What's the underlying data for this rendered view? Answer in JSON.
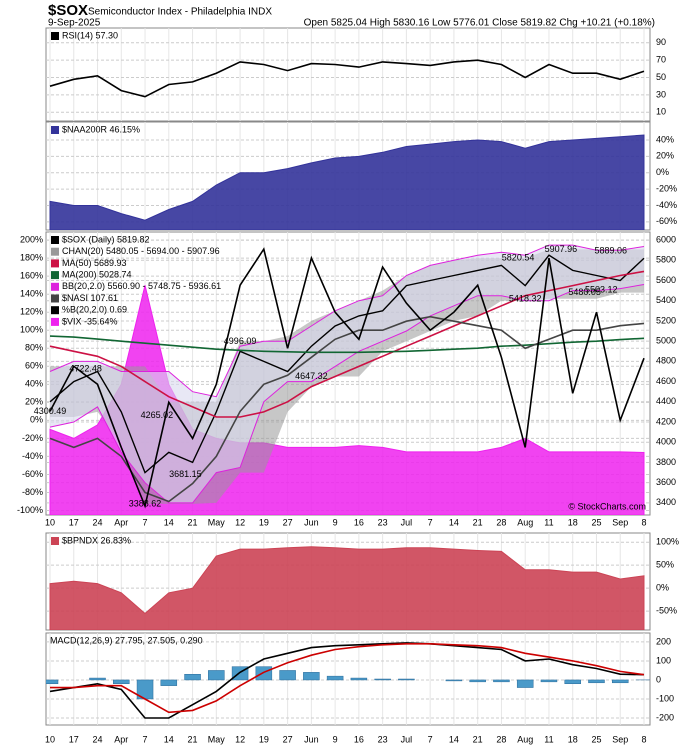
{
  "header": {
    "symbol": "$SOX",
    "name": "Semiconductor Index - Philadelphia INDX",
    "date": "9-Sep-2025",
    "quote": "Open 5825.04 High 5830.16 Low 5776.01 Close 5819.82 Chg +10.21 (+0.18%)",
    "credit": "© StockCharts.com"
  },
  "chart_data": [
    {
      "type": "line",
      "ylim": [
        0,
        107
      ],
      "yticks": [
        90,
        70,
        50,
        30,
        10
      ],
      "grid": true,
      "series": [
        {
          "name": "RSI(14) 57.30",
          "color": "#000000",
          "style": "line",
          "values": [
            40,
            48,
            52,
            35,
            28,
            42,
            45,
            55,
            68,
            65,
            58,
            66,
            65,
            62,
            68,
            66,
            64,
            68,
            70,
            65,
            50,
            65,
            55,
            55,
            48,
            57.3
          ]
        }
      ]
    },
    {
      "type": "area",
      "ylim": [
        -70,
        62
      ],
      "grid": true,
      "yticks": [
        {
          "value": 40,
          "label": "40%"
        },
        {
          "value": 20,
          "label": "20%"
        },
        {
          "value": 0,
          "label": "0%"
        },
        {
          "value": -20,
          "label": "-20%"
        },
        {
          "value": -40,
          "label": "-40%"
        },
        {
          "value": -60,
          "label": "-60%"
        }
      ],
      "series": [
        {
          "name": "$NAA200R 46.15%",
          "color": "#33339a",
          "style": "area",
          "values": [
            -35,
            -40,
            -40,
            -50,
            -58,
            -45,
            -35,
            -15,
            0,
            0,
            5,
            12,
            18,
            20,
            25,
            32,
            35,
            38,
            40,
            38,
            30,
            38,
            40,
            42,
            44,
            46.15
          ]
        }
      ]
    },
    {
      "type": "line",
      "ylim": [
        -105,
        209
      ],
      "y2lim": [
        3280,
        6080
      ],
      "grid": true,
      "yticks": [
        {
          "value": 200,
          "label": "200%"
        },
        {
          "value": 180,
          "label": "180%"
        },
        {
          "value": 160,
          "label": "160%"
        },
        {
          "value": 140,
          "label": "140%"
        },
        {
          "value": 120,
          "label": "120%"
        },
        {
          "value": 100,
          "label": "100%"
        },
        {
          "value": 80,
          "label": "80%"
        },
        {
          "value": 60,
          "label": "60%"
        },
        {
          "value": 40,
          "label": "40%"
        },
        {
          "value": 20,
          "label": "20%"
        },
        {
          "value": 0,
          "label": "0%"
        },
        {
          "value": -20,
          "label": "-20%"
        },
        {
          "value": -40,
          "label": "-40%"
        },
        {
          "value": -60,
          "label": "-60%"
        },
        {
          "value": -80,
          "label": "-80%"
        },
        {
          "value": -100,
          "label": "-100%"
        }
      ],
      "y2ticks": [
        6000,
        5800,
        5600,
        5400,
        5200,
        5000,
        4800,
        4600,
        4400,
        4200,
        4000,
        3800,
        3600,
        3400
      ],
      "series": [
        {
          "name": "$SOX (Daily) 5819.82",
          "color": "#000000",
          "style": "line",
          "axis": "y2",
          "values": [
            4400,
            4600,
            4700,
            4300,
            3700,
            3900,
            3800,
            4300,
            4900,
            4800,
            4700,
            4950,
            5150,
            5250,
            5300,
            5550,
            5600,
            5650,
            5700,
            5750,
            5550,
            5850,
            5700,
            5650,
            5600,
            5819.82
          ]
        },
        {
          "name": "CHAN(20) 5480.05 - 5694.00 - 5907.96",
          "color": "#999999",
          "style": "band",
          "axis": "y2",
          "values": [
            4750,
            4750,
            4750,
            4750,
            4750,
            4400,
            4400,
            4400,
            5000,
            5000,
            5050,
            5200,
            5300,
            5400,
            5500,
            5650,
            5750,
            5800,
            5820,
            5820,
            5820,
            5908,
            5908,
            5908,
            5908,
            5908
          ],
          "lower": [
            4250,
            4250,
            4300,
            4000,
            3390,
            3390,
            3390,
            3400,
            3700,
            3700,
            4300,
            4550,
            4650,
            4650,
            4900,
            5000,
            5100,
            5200,
            5250,
            5400,
            5400,
            5420,
            5420,
            5420,
            5480,
            5480
          ]
        },
        {
          "name": "MA(50) 5689.93",
          "color": "#cc1144",
          "style": "line",
          "axis": "y2",
          "values": [
            4950,
            4900,
            4850,
            4750,
            4600,
            4450,
            4350,
            4250,
            4250,
            4300,
            4400,
            4550,
            4650,
            4750,
            4850,
            4950,
            5050,
            5150,
            5250,
            5350,
            5450,
            5500,
            5550,
            5600,
            5650,
            5689.93
          ]
        },
        {
          "name": "MA(200) 5028.74",
          "color": "#116633",
          "style": "line",
          "axis": "y2",
          "values": [
            5050,
            5040,
            5020,
            5000,
            4980,
            4960,
            4940,
            4920,
            4910,
            4900,
            4895,
            4890,
            4890,
            4890,
            4895,
            4900,
            4910,
            4920,
            4930,
            4950,
            4960,
            4975,
            4990,
            5000,
            5015,
            5028.74
          ]
        },
        {
          "name": "BB(20,2.0) 5560.90 - 5748.75 - 5936.61",
          "color": "#dd22dd",
          "style": "lines",
          "axis": "y2",
          "values": [
            4700,
            4800,
            4800,
            4700,
            4700,
            4700,
            4500,
            4450,
            4950,
            5000,
            5000,
            5150,
            5300,
            5400,
            5450,
            5650,
            5750,
            5800,
            5850,
            5880,
            5850,
            5950,
            5950,
            5900,
            5900,
            5936.61
          ],
          "lower": [
            4150,
            4200,
            4350,
            3900,
            3600,
            3400,
            3400,
            3700,
            3750,
            4400,
            4600,
            4600,
            4750,
            4900,
            5000,
            5100,
            5250,
            5350,
            5450,
            5450,
            5400,
            5400,
            5500,
            5500,
            5520,
            5560.9
          ]
        },
        {
          "name": "$NASI 107.61",
          "color": "#444444",
          "style": "line",
          "values": [
            -20,
            -30,
            -20,
            -40,
            -80,
            -90,
            -70,
            -40,
            10,
            40,
            50,
            70,
            90,
            100,
            100,
            110,
            115,
            110,
            105,
            100,
            80,
            90,
            100,
            100,
            105,
            107.61
          ]
        },
        {
          "name": "%B(20,2.0) 0.69",
          "color": "#000000",
          "style": "line",
          "values": [
            10,
            60,
            40,
            -30,
            -95,
            20,
            -20,
            40,
            150,
            190,
            80,
            180,
            120,
            90,
            170,
            130,
            100,
            120,
            150,
            70,
            -30,
            180,
            30,
            120,
            0,
            69
          ]
        },
        {
          "name": "$VIX -35.64%",
          "color": "#ee22ee",
          "style": "area",
          "values": [
            -10,
            -20,
            -5,
            40,
            150,
            40,
            -10,
            -20,
            -25,
            -25,
            -30,
            -30,
            -30,
            -28,
            -30,
            -35,
            -35,
            -35,
            -35,
            -30,
            -20,
            -35,
            -35,
            -35,
            -35,
            -35.64
          ]
        }
      ],
      "annotations": [
        {
          "x": 0,
          "value": 4300.49
        },
        {
          "x": 1.5,
          "value": 4722.48
        },
        {
          "x": 4,
          "value": 3388.62
        },
        {
          "x": 4.5,
          "value": 4265.02
        },
        {
          "x": 5.7,
          "value": 3681.15
        },
        {
          "x": 8,
          "value": 4996.09
        },
        {
          "x": 11,
          "value": 4647.32
        },
        {
          "x": 19.7,
          "value": 5820.54
        },
        {
          "x": 20,
          "value": 5418.32
        },
        {
          "x": 21.5,
          "value": 5907.96
        },
        {
          "x": 22.5,
          "value": 5480.05
        },
        {
          "x": 23.6,
          "value": 5889.06
        },
        {
          "x": 23.2,
          "value": 5503.12
        }
      ]
    },
    {
      "type": "area",
      "ylim": [
        -91,
        120
      ],
      "grid": true,
      "yticks": [
        {
          "value": 100,
          "label": "100%"
        },
        {
          "value": 50,
          "label": "50%"
        },
        {
          "value": 0,
          "label": "0%"
        },
        {
          "value": -50,
          "label": "-50%"
        }
      ],
      "series": [
        {
          "name": "$BPNDX 26.83%",
          "color": "#cc4455",
          "style": "area",
          "values": [
            10,
            15,
            10,
            -10,
            -55,
            -10,
            0,
            70,
            85,
            85,
            88,
            90,
            88,
            85,
            85,
            88,
            88,
            85,
            82,
            80,
            40,
            40,
            35,
            35,
            20,
            26.83
          ]
        }
      ]
    },
    {
      "type": "line",
      "title": "MACD(12,26,9) 27.795, 27.505, 0.290",
      "ylim": [
        -237,
        247
      ],
      "yticks": [
        200,
        100,
        0,
        -100,
        -200
      ],
      "grid": true,
      "categories": [
        "10",
        "17",
        "24",
        "Apr",
        "7",
        "14",
        "21",
        "May",
        "12",
        "19",
        "27",
        "Jun",
        "9",
        "16",
        "23",
        "Jul",
        "7",
        "14",
        "21",
        "28",
        "Aug",
        "11",
        "18",
        "25",
        "Sep",
        "8"
      ],
      "series": [
        {
          "color": "#4a9ac9",
          "style": "bar",
          "values": [
            -20,
            0,
            10,
            -20,
            -100,
            -30,
            30,
            50,
            70,
            70,
            50,
            40,
            20,
            10,
            5,
            5,
            0,
            -5,
            -10,
            -10,
            -40,
            -10,
            -20,
            -15,
            -15,
            0.29
          ]
        },
        {
          "color": "#000000",
          "style": "line",
          "values": [
            -60,
            -40,
            -20,
            -50,
            -200,
            -200,
            -130,
            -60,
            40,
            110,
            140,
            170,
            180,
            185,
            190,
            195,
            190,
            180,
            170,
            160,
            100,
            110,
            80,
            60,
            30,
            27.795
          ]
        },
        {
          "color": "#cc0000",
          "style": "line",
          "values": [
            -40,
            -40,
            -30,
            -30,
            -100,
            -170,
            -160,
            -110,
            -30,
            40,
            90,
            130,
            160,
            175,
            185,
            190,
            190,
            185,
            180,
            170,
            140,
            120,
            100,
            75,
            45,
            27.505
          ]
        }
      ]
    }
  ]
}
